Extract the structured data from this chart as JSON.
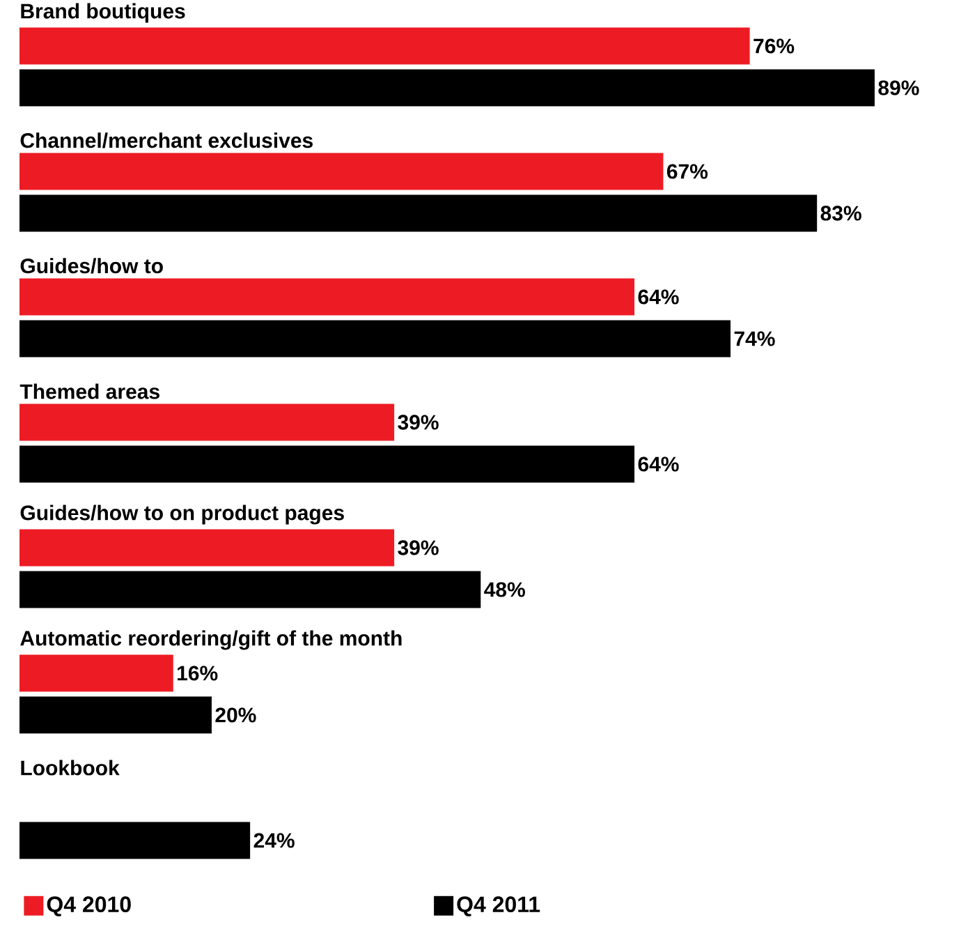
{
  "chart_data": {
    "type": "bar",
    "orientation": "horizontal",
    "categories": [
      "Brand boutiques",
      "Channel/merchant exclusives",
      "Guides/how to",
      "Themed areas",
      "Guides/how to on product pages",
      "Automatic reordering/gift of the month",
      "Lookbook"
    ],
    "series": [
      {
        "name": "Q4 2010",
        "color": "#ed1c24",
        "values": [
          76,
          67,
          64,
          39,
          39,
          16,
          null
        ],
        "value_labels": [
          "76%",
          "67%",
          "64%",
          "39%",
          "39%",
          "16%",
          null
        ]
      },
      {
        "name": "Q4 2011",
        "color": "#000000",
        "values": [
          89,
          83,
          74,
          64,
          48,
          20,
          24
        ],
        "value_labels": [
          "89%",
          "83%",
          "74%",
          "64%",
          "48%",
          "20%",
          "24%"
        ]
      }
    ],
    "legend": "bottom"
  }
}
